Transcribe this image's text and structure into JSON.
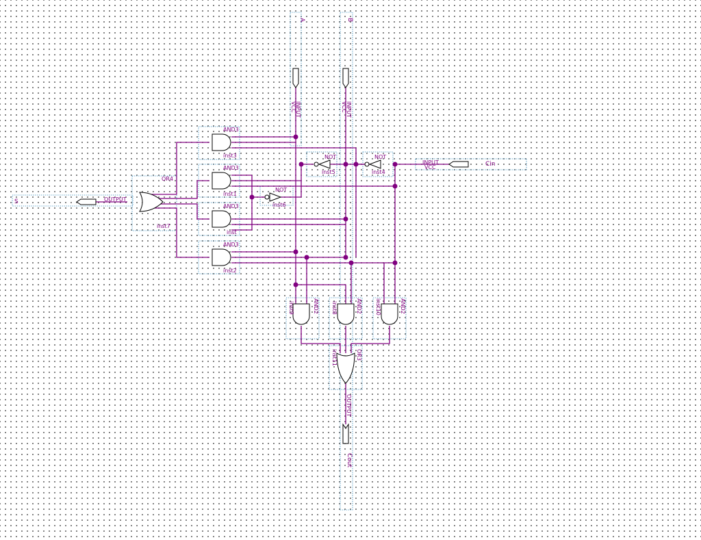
{
  "pins": {
    "a": {
      "name": "A",
      "type": "INPUT",
      "supply": "VCC"
    },
    "b": {
      "name": "B",
      "type": "INPUT",
      "supply": "VCC"
    },
    "cin": {
      "name": "Cin",
      "type": "INPUT",
      "supply": "VCC"
    },
    "s": {
      "name": "S",
      "type": "OUTPUT"
    },
    "cout": {
      "name": "Cout",
      "type": "OUTPUT"
    }
  },
  "gates": {
    "inst3": {
      "type": "AND3",
      "inst": "inst3"
    },
    "inst1": {
      "type": "AND3",
      "inst": "inst1"
    },
    "inst": {
      "type": "AND3",
      "inst": "inst"
    },
    "inst2": {
      "type": "AND3",
      "inst": "inst2"
    },
    "inst7": {
      "type": "OR4",
      "inst": "inst7"
    },
    "inst5": {
      "type": "NOT",
      "inst": "inst5"
    },
    "inst4": {
      "type": "NOT",
      "inst": "inst4"
    },
    "inst6": {
      "type": "NOT",
      "inst": "inst6"
    },
    "inst9": {
      "type": "AND2",
      "inst": "inst9"
    },
    "inst8": {
      "type": "AND2",
      "inst": "inst8"
    },
    "inst10": {
      "type": "AND2",
      "inst": "inst10"
    },
    "inst11": {
      "type": "OR3",
      "inst": "inst11"
    }
  }
}
